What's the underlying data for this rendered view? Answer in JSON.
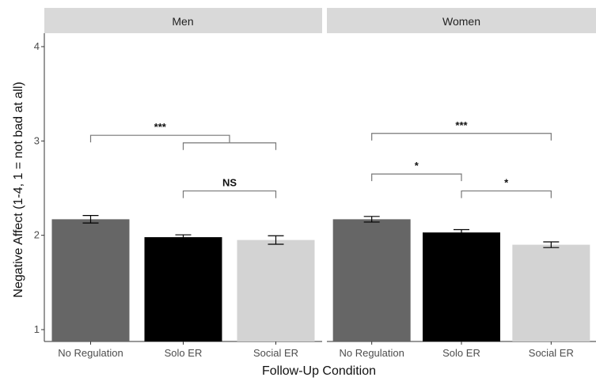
{
  "chart_data": {
    "type": "bar",
    "xlabel": "Follow-Up Condition",
    "ylabel": "Negative Affect (1-4, 1 = not bad at all)",
    "ylim": [
      1,
      4
    ],
    "yticks": [
      "1",
      "2",
      "3",
      "4"
    ],
    "grid": false,
    "categories": [
      "No Regulation",
      "Solo ER",
      "Social ER"
    ],
    "bar_colors": [
      "#666666",
      "#000000",
      "#d3d3d3"
    ],
    "panels": [
      {
        "name": "Men",
        "values": [
          2.17,
          1.98,
          1.95
        ],
        "error": [
          0.04,
          0.025,
          0.045
        ],
        "significance": [
          {
            "label": "***",
            "start": 0,
            "end": 1.5,
            "y": 3.06
          },
          {
            "label": "",
            "start": 1,
            "end": 2,
            "y": 2.98
          },
          {
            "label": "NS",
            "start": 1,
            "end": 2,
            "y": 2.47
          }
        ]
      },
      {
        "name": "Women",
        "values": [
          2.17,
          2.03,
          1.9
        ],
        "error": [
          0.03,
          0.03,
          0.03
        ],
        "significance": [
          {
            "label": "***",
            "start": 0,
            "end": 2,
            "y": 3.08
          },
          {
            "label": "*",
            "start": 0,
            "end": 1,
            "y": 2.65
          },
          {
            "label": "*",
            "start": 1,
            "end": 2,
            "y": 2.47
          }
        ]
      }
    ]
  }
}
